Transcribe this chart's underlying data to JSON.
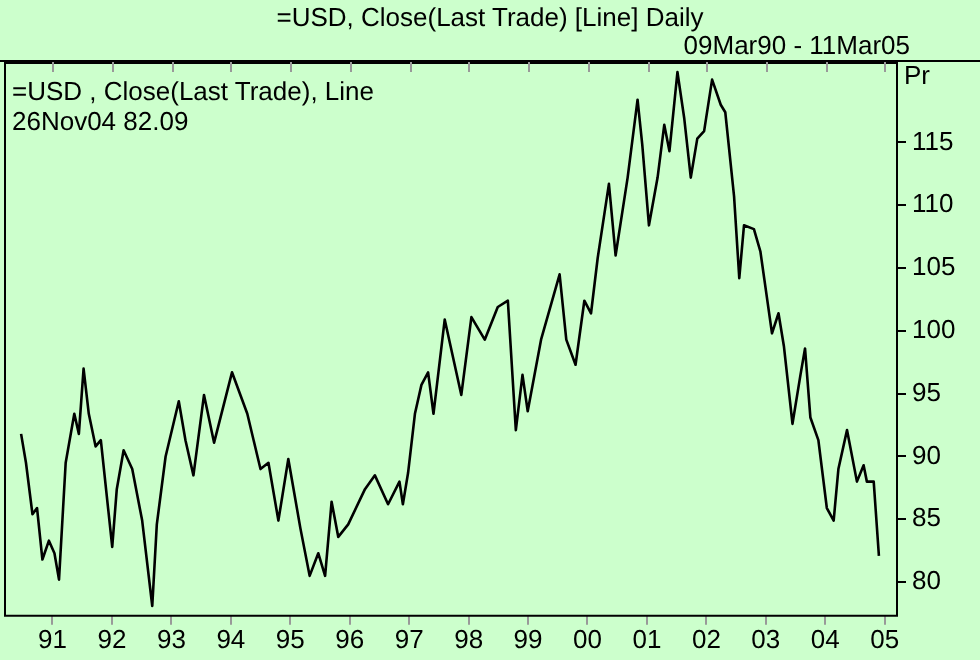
{
  "chart_data": {
    "type": "line",
    "title": "=USD, Close(Last Trade) [Line] Daily",
    "subtitle": "09Mar90 - 11Mar05",
    "ylabel": "Pr",
    "annotations": [
      "=USD , Close(Last Trade), Line",
      "26Nov04 82.09"
    ],
    "x": [
      "1990-06-22",
      "1990-07-22",
      "1990-08-31",
      "1990-09-28",
      "1990-10-31",
      "1990-12-10",
      "1991-01-13",
      "1991-02-10",
      "1991-03-23",
      "1991-05-15",
      "1991-06-12",
      "1991-07-11",
      "1991-08-12",
      "1991-09-23",
      "1991-10-25",
      "1992-01-03",
      "1992-01-31",
      "1992-03-13",
      "1992-05-05",
      "1992-07-05",
      "1992-09-05",
      "1992-10-03",
      "1992-11-26",
      "1993-02-15",
      "1993-03-28",
      "1993-05-16",
      "1993-07-20",
      "1993-09-20",
      "1994-01-08",
      "1994-04-12",
      "1994-07-02",
      "1994-08-20",
      "1994-10-20",
      "1994-12-20",
      "1995-03-04",
      "1995-04-30",
      "1995-06-22",
      "1995-08-03",
      "1995-09-12",
      "1995-10-23",
      "1995-12-23",
      "1996-04-04",
      "1996-06-04",
      "1996-08-24",
      "1996-11-02",
      "1996-11-23",
      "1996-12-25",
      "1997-02-05",
      "1997-03-17",
      "1997-04-27",
      "1997-05-30",
      "1997-08-07",
      "1997-11-17",
      "1998-01-18",
      "1998-04-10",
      "1998-06-29",
      "1998-08-30",
      "1998-10-18",
      "1998-11-28",
      "1998-12-30",
      "1999-03-22",
      "1999-07-14",
      "1999-08-24",
      "1999-10-20",
      "1999-12-13",
      "2000-01-23",
      "2000-03-04",
      "2000-05-12",
      "2000-06-22",
      "2000-09-04",
      "2000-11-04",
      "2000-12-03",
      "2001-01-13",
      "2001-03-07",
      "2001-04-17",
      "2001-05-19",
      "2001-07-07",
      "2001-08-18",
      "2001-09-27",
      "2001-11-06",
      "2001-12-18",
      "2002-02-05",
      "2002-03-30",
      "2002-04-27",
      "2002-06-20",
      "2002-07-22",
      "2002-08-20",
      "2002-10-20",
      "2002-11-29",
      "2003-02-08",
      "2003-03-20",
      "2003-04-22",
      "2003-06-14",
      "2003-08-02",
      "2003-08-30",
      "2003-10-02",
      "2003-11-20",
      "2004-01-11",
      "2004-02-22",
      "2004-03-22",
      "2004-05-14",
      "2004-07-14",
      "2004-08-24",
      "2004-09-13",
      "2004-10-25",
      "2004-11-26"
    ],
    "series": [
      {
        "color": "#000000",
        "values": [
          91.8,
          89.5,
          85.4,
          85.9,
          81.8,
          83.3,
          82.3,
          80.2,
          89.5,
          93.4,
          91.8,
          97.0,
          93.4,
          90.8,
          91.3,
          82.8,
          87.4,
          90.5,
          89.0,
          84.9,
          78.1,
          84.6,
          90.0,
          94.4,
          91.3,
          88.5,
          94.9,
          91.1,
          96.7,
          93.4,
          89.0,
          89.5,
          84.9,
          89.8,
          84.3,
          80.5,
          82.3,
          80.5,
          86.4,
          83.6,
          84.6,
          87.4,
          88.5,
          86.2,
          88.0,
          86.2,
          88.7,
          93.4,
          95.7,
          96.7,
          93.4,
          100.9,
          94.9,
          101.1,
          99.3,
          101.9,
          102.4,
          92.1,
          96.5,
          93.6,
          99.3,
          104.5,
          99.3,
          97.3,
          102.4,
          101.4,
          105.8,
          111.7,
          106.0,
          112.2,
          118.4,
          114.8,
          108.4,
          112.2,
          116.4,
          114.3,
          120.6,
          116.9,
          112.2,
          115.3,
          115.9,
          120.0,
          118.0,
          117.4,
          110.7,
          104.2,
          108.4,
          108.1,
          106.3,
          99.8,
          101.4,
          98.8,
          92.6,
          96.5,
          98.6,
          93.1,
          91.3,
          85.9,
          84.9,
          89.0,
          92.1,
          88.0,
          89.3,
          88.0,
          88.0,
          82.09
        ]
      }
    ],
    "xlim": [
      "1990-03-09",
      "2005-03-11"
    ],
    "xticks": [
      {
        "value": "1991-01-01",
        "label": "91"
      },
      {
        "value": "1992-01-01",
        "label": "92"
      },
      {
        "value": "1993-01-01",
        "label": "93"
      },
      {
        "value": "1994-01-01",
        "label": "94"
      },
      {
        "value": "1995-01-01",
        "label": "95"
      },
      {
        "value": "1996-01-01",
        "label": "96"
      },
      {
        "value": "1997-01-01",
        "label": "97"
      },
      {
        "value": "1998-01-01",
        "label": "98"
      },
      {
        "value": "1999-01-01",
        "label": "99"
      },
      {
        "value": "2000-01-01",
        "label": "00"
      },
      {
        "value": "2001-01-01",
        "label": "01"
      },
      {
        "value": "2002-01-01",
        "label": "02"
      },
      {
        "value": "2003-01-01",
        "label": "03"
      },
      {
        "value": "2004-01-01",
        "label": "04"
      },
      {
        "value": "2005-01-01",
        "label": "05"
      }
    ],
    "ylim": [
      77.4,
      121.4
    ],
    "yticks": [
      80,
      85,
      90,
      95,
      100,
      105,
      110,
      115
    ],
    "grid": false,
    "legend": false,
    "marker": "none",
    "line_style": "solid"
  }
}
